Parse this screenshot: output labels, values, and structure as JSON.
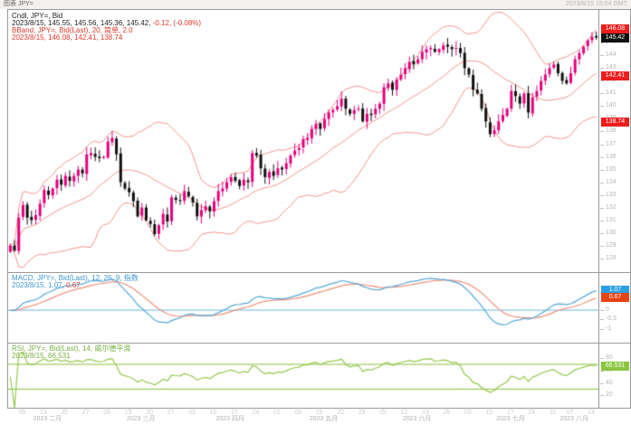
{
  "window": {
    "tab_label": "图表 JPY=",
    "timestamp": "2023/8/15 15:04 GMT"
  },
  "colors": {
    "candle_up": "#e5007d",
    "candle_down": "#111111",
    "bband_line": "#f2948c",
    "macd_line": "#55a7da",
    "macd_signal": "#f0907a",
    "macd_zero_line": "#6ab6e4",
    "rsi_line": "#94c94c",
    "rsi_ref_line": "#86c03c",
    "badge_red": "#ee1c1c",
    "badge_black": "#111111",
    "badge_blue": "#2b9fe0",
    "badge_orange": "#e84312",
    "badge_green": "#8bc63e"
  },
  "price_panel": {
    "legend": {
      "line1": "Cndl, JPY=, Bid",
      "line2_black": "2023/8/15, 145.55, 145.56, 145.36, 145.42,",
      "line2_red": "-0.12, (-0.08%)",
      "line3": "BBand, JPY=, Bid(Last), 20, 简单, 2.0",
      "line4": "2023/8/15, 146.08, 142.41, 138.74"
    },
    "badges": {
      "upper": "146.08",
      "last": "145.42",
      "middle": "142.41",
      "lower": "138.74"
    },
    "axis_ticks": [
      "145",
      "144",
      "143",
      "142",
      "141",
      "140",
      "139",
      "138",
      "137",
      "136",
      "135",
      "134",
      "133",
      "132",
      "131",
      "130",
      "129",
      "128"
    ]
  },
  "macd_panel": {
    "legend": {
      "line1": "MACD, JPY=, Bid(Last), 12, 26, 9, 指数",
      "line2_blue": "2023/8/15, 1.07,",
      "line2_red": "0.67"
    },
    "badges": {
      "macd": "1.07",
      "signal": "0.67"
    },
    "axis_ticks": [
      "1",
      "0.5",
      "0",
      "-0.5",
      "-1"
    ]
  },
  "rsi_panel": {
    "legend": {
      "line1": "RSI, JPY=, Bid(Last), 14, 威尔德平滑",
      "line2": "2023/8/15, 66.531"
    },
    "badge": "66.531",
    "axis_ticks": [
      "80",
      "60",
      "40",
      "20"
    ],
    "ref_lines": [
      70,
      30
    ]
  },
  "time_axis": {
    "day_labels": [
      "06",
      "13",
      "20",
      "27",
      "06",
      "13",
      "20",
      "27",
      "03",
      "10",
      "17",
      "24",
      "01",
      "08",
      "15",
      "22",
      "29",
      "05",
      "12",
      "19",
      "26",
      "03",
      "10",
      "17",
      "24",
      "31",
      "07",
      "14"
    ],
    "day_idx": [
      3,
      8,
      13,
      18,
      23,
      28,
      33,
      38,
      43,
      48,
      53,
      58,
      63,
      68,
      73,
      78,
      83,
      88,
      93,
      98,
      103,
      108,
      113,
      118,
      123,
      128,
      132,
      137
    ],
    "months": [
      {
        "label": "2023 二月",
        "idx": 9
      },
      {
        "label": "2023 三月",
        "idx": 31
      },
      {
        "label": "2023 四月",
        "idx": 52
      },
      {
        "label": "2023 五月",
        "idx": 74
      },
      {
        "label": "2023 六月",
        "idx": 96
      },
      {
        "label": "2023 七月",
        "idx": 118
      },
      {
        "label": "2023 八月",
        "idx": 133
      }
    ]
  },
  "chart_data": {
    "type": "candlestick",
    "symbol": "JPY=",
    "field": "Bid",
    "interval": "daily",
    "date_range": [
      "2023/2/1",
      "2023/8/15"
    ],
    "price_axis": {
      "min": 126.9,
      "max": 147.6
    },
    "closes": [
      129.0,
      128.6,
      131.2,
      132.2,
      131.2,
      131.0,
      131.4,
      132.3,
      133.4,
      133.0,
      133.5,
      134.2,
      133.8,
      134.5,
      134.1,
      134.5,
      135.0,
      134.7,
      136.2,
      136.3,
      136.0,
      135.9,
      136.0,
      137.2,
      137.5,
      136.2,
      134.0,
      133.5,
      133.2,
      132.5,
      131.3,
      132.0,
      131.0,
      130.7,
      129.9,
      130.6,
      131.5,
      130.9,
      132.8,
      132.6,
      132.5,
      133.3,
      132.9,
      132.4,
      131.3,
      131.8,
      132.1,
      131.7,
      132.5,
      133.3,
      133.5,
      134.0,
      134.4,
      134.1,
      133.7,
      134.2,
      134.0,
      136.3,
      136.1,
      135.1,
      134.4,
      134.8,
      134.5,
      135.1,
      135.0,
      135.5,
      136.1,
      136.5,
      136.7,
      137.4,
      137.5,
      138.2,
      138.6,
      138.2,
      139.0,
      139.5,
      139.7,
      140.0,
      140.6,
      139.8,
      139.4,
      139.7,
      139.8,
      138.8,
      139.4,
      139.3,
      139.8,
      140.2,
      141.5,
      141.8,
      141.3,
      142.1,
      142.5,
      143.0,
      143.5,
      143.3,
      143.7,
      144.3,
      144.5,
      144.6,
      144.3,
      144.5,
      144.8,
      144.7,
      144.5,
      144.6,
      144.2,
      143.0,
      142.5,
      141.3,
      141.0,
      139.8,
      138.8,
      137.8,
      138.1,
      138.8,
      139.3,
      139.8,
      141.2,
      140.8,
      140.2,
      141.0,
      139.5,
      140.7,
      141.2,
      142.0,
      142.5,
      143.0,
      143.3,
      142.6,
      142.0,
      141.8,
      142.6,
      143.7,
      144.2,
      144.7,
      145.2,
      145.5,
      145.42
    ],
    "last_candle": {
      "date": "2023/8/15",
      "open": 145.55,
      "high": 145.56,
      "low": 145.36,
      "close": 145.42,
      "change": -0.12,
      "change_pct": "-0.08%"
    },
    "overlays": [
      {
        "name": "BBand",
        "period": 20,
        "ma_type": "简单",
        "width": 2.0,
        "upper": 146.08,
        "middle": 142.41,
        "lower": 138.74
      }
    ],
    "studies": [
      {
        "name": "MACD",
        "fast": 12,
        "slow": 26,
        "signal_period": 9,
        "ma_type": "指数",
        "macd": 1.07,
        "signal": 0.67,
        "axis": {
          "min": -1.75,
          "max": 2.05
        }
      },
      {
        "name": "RSI",
        "period": 14,
        "smoothing": "威尔德平滑",
        "value": 66.531,
        "axis": {
          "min": 0,
          "max": 105
        },
        "ref_lines": [
          70,
          30
        ]
      }
    ]
  }
}
